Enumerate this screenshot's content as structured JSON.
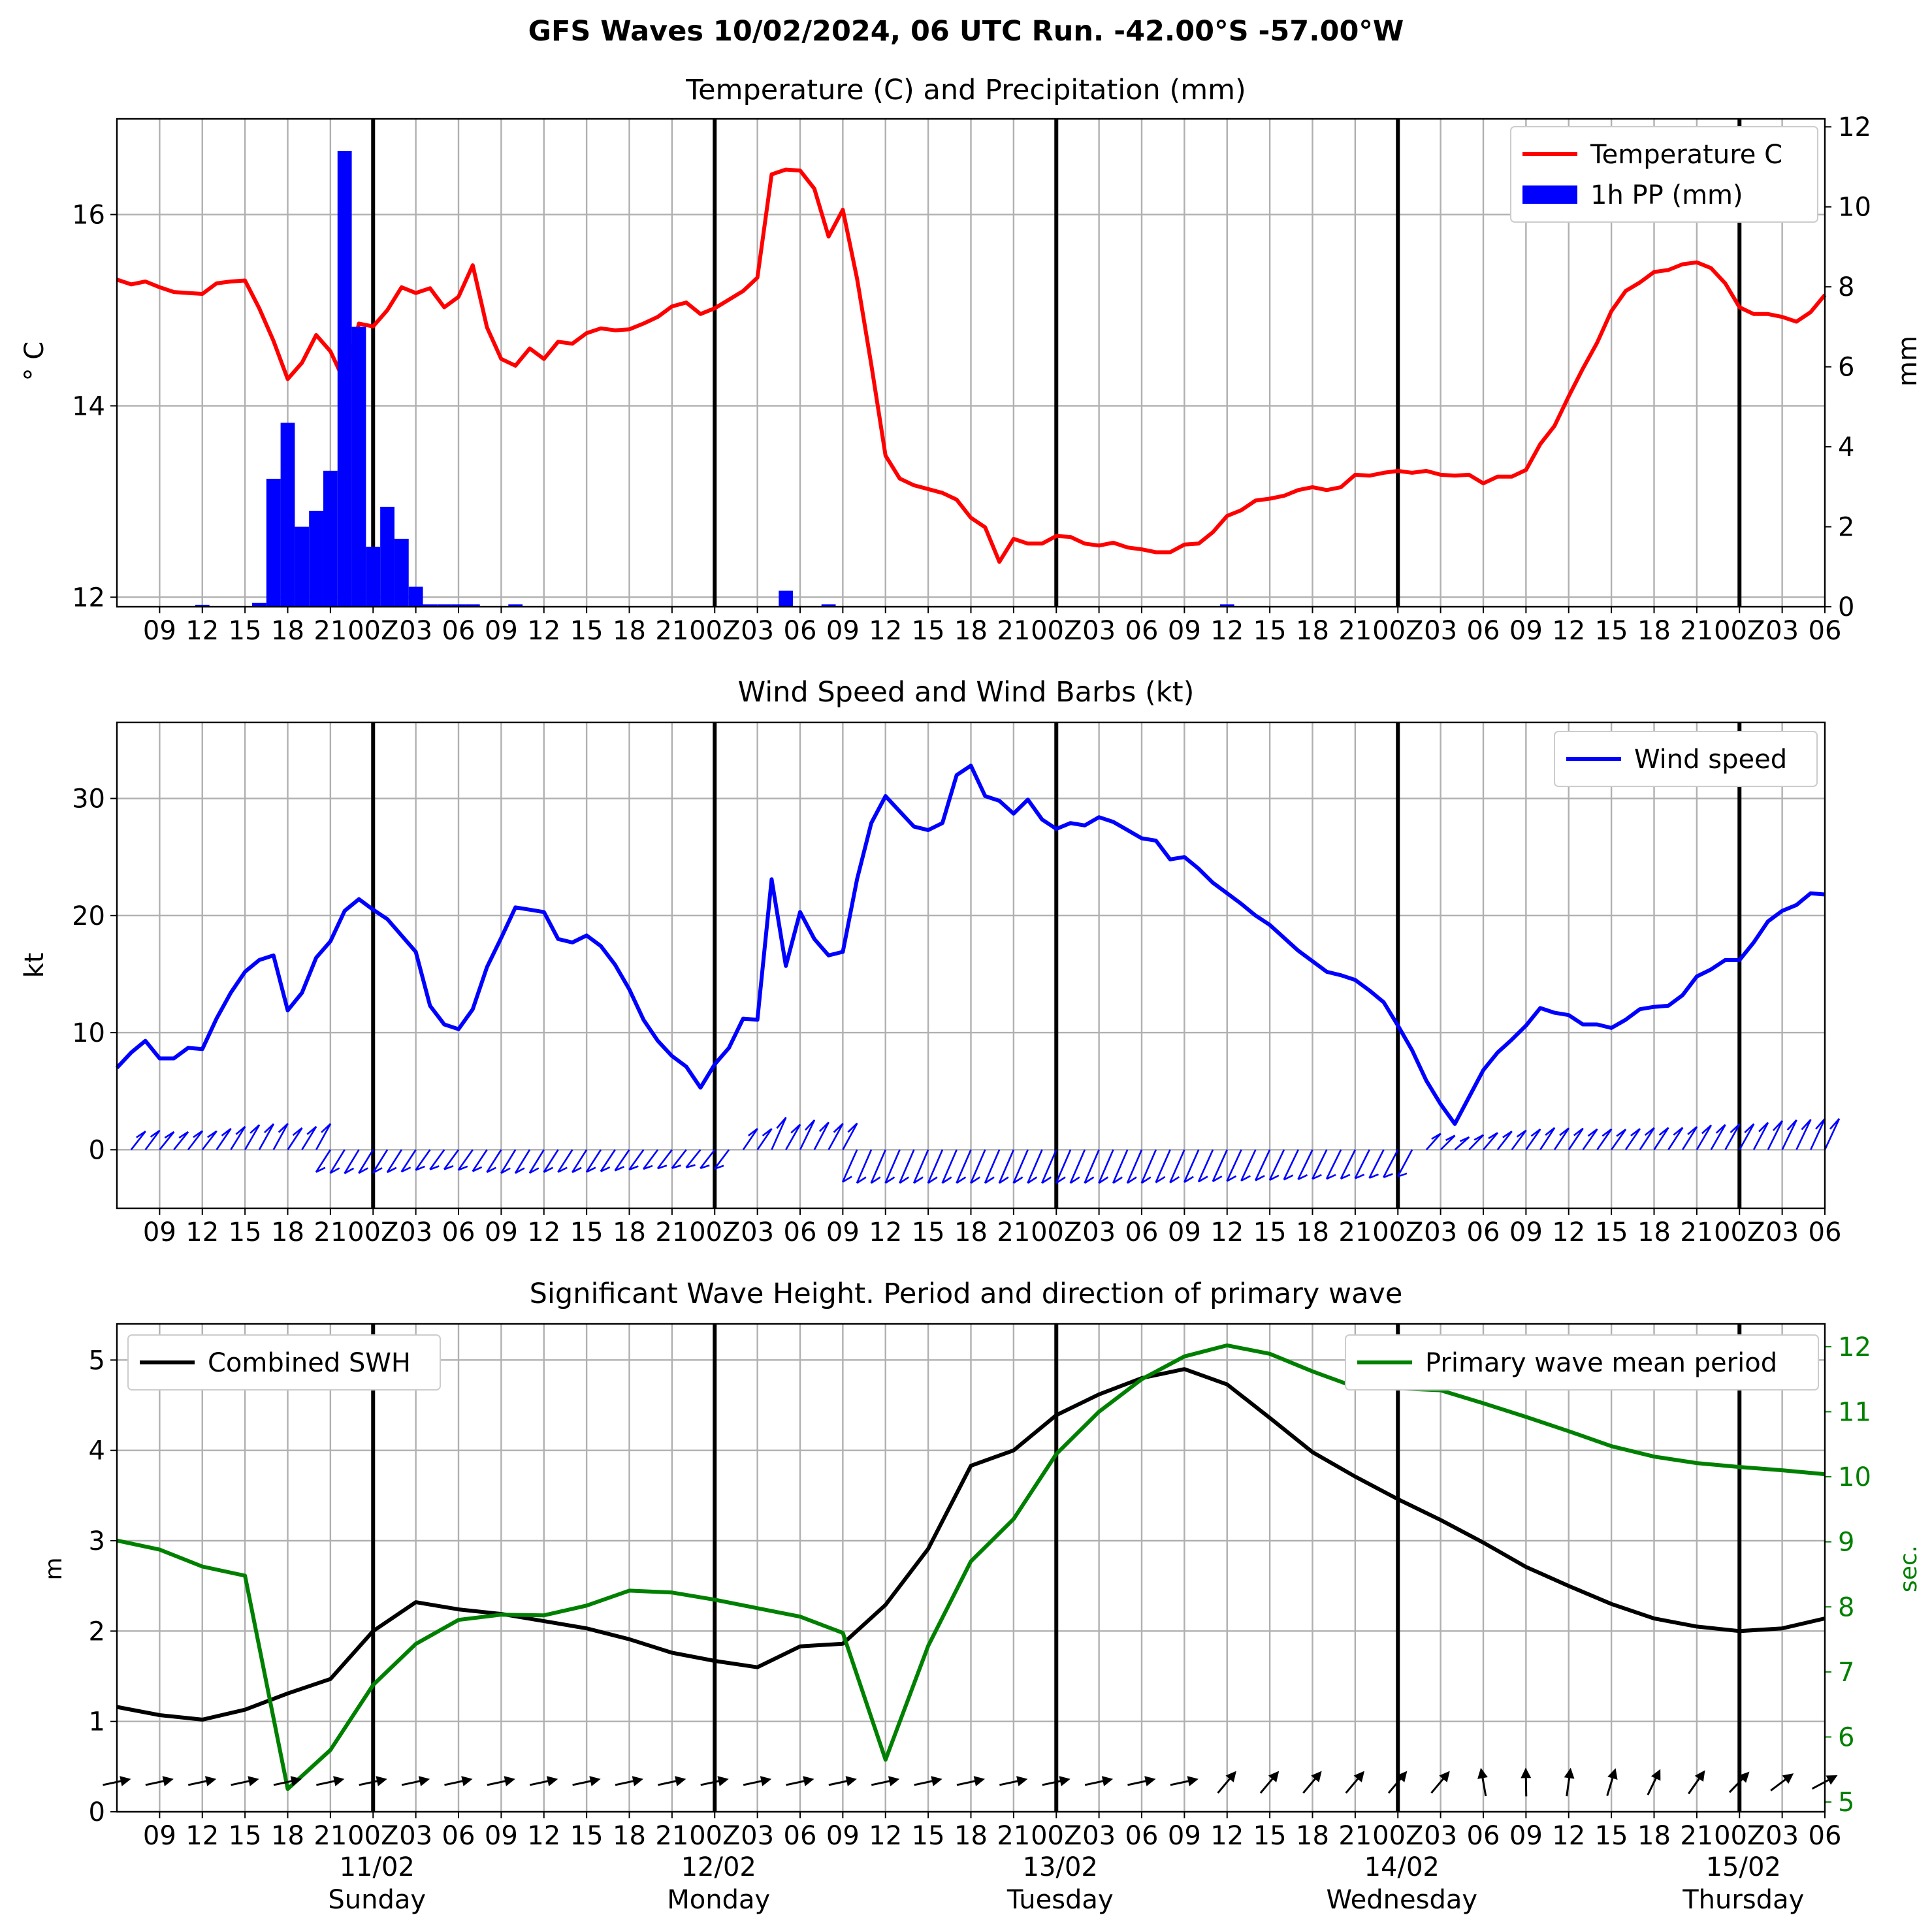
{
  "figure": {
    "title": "GFS Waves 10/02/2024, 06 UTC Run. -42.00°S -57.00°W",
    "x_tick_labels": [
      "09",
      "12",
      "15",
      "18",
      "21",
      "00Z",
      "03",
      "06",
      "09",
      "12",
      "15",
      "18",
      "21",
      "00Z",
      "03",
      "06",
      "09",
      "12",
      "15",
      "18",
      "21",
      "00Z",
      "03",
      "06",
      "09",
      "12",
      "15",
      "18",
      "21",
      "00Z",
      "03",
      "06",
      "09",
      "12",
      "15",
      "18",
      "21",
      "00Z",
      "03",
      "06"
    ],
    "day_labels": [
      {
        "date": "11/02",
        "day": "Sunday"
      },
      {
        "date": "12/02",
        "day": "Monday"
      },
      {
        "date": "13/02",
        "day": "Tuesday"
      },
      {
        "date": "14/02",
        "day": "Wednesday"
      },
      {
        "date": "15/02",
        "day": "Thursday"
      }
    ]
  },
  "chart_data": [
    {
      "type": "line",
      "title": "Temperature (C) and Precipitation (mm)",
      "x_unit": "hours since 10/02/2024 06 UTC",
      "xlim": [
        0,
        120
      ],
      "ylabel": "$^\\circ$C",
      "ylabel_display": "° C",
      "ylim": [
        11.9,
        17.0
      ],
      "yticks": [
        12,
        14,
        16
      ],
      "y2label": "mm",
      "y2lim": [
        0,
        12.2
      ],
      "y2ticks": [
        0,
        2,
        4,
        6,
        8,
        10,
        12
      ],
      "grid": true,
      "legend": "top-right",
      "series": [
        {
          "name": "Temperature C",
          "color": "#ff0000",
          "axis": "left",
          "x": [
            0,
            1,
            2,
            3,
            4,
            5,
            6,
            7,
            8,
            9,
            10,
            11,
            12,
            13,
            14,
            15,
            16,
            17,
            18,
            19,
            20,
            21,
            22,
            23,
            24,
            25,
            26,
            27,
            28,
            29,
            30,
            31,
            32,
            33,
            34,
            35,
            36,
            37,
            38,
            39,
            40,
            41,
            42,
            43,
            44,
            45,
            46,
            47,
            48,
            49,
            50,
            51,
            52,
            53,
            54,
            55,
            56,
            57,
            58,
            59,
            60,
            61,
            62,
            63,
            64,
            65,
            66,
            67,
            68,
            69,
            70,
            71,
            72,
            73,
            74,
            75,
            76,
            77,
            78,
            79,
            80,
            81,
            82,
            83,
            84,
            85,
            86,
            87,
            88,
            89,
            90,
            91,
            92,
            93,
            94,
            95,
            96,
            97,
            98,
            99,
            100,
            101,
            102,
            103,
            104,
            105,
            106,
            107,
            108,
            109,
            110,
            111,
            112,
            113,
            114,
            115,
            116,
            117,
            118,
            119,
            120
          ],
          "y": [
            15.32,
            15.27,
            15.3,
            15.24,
            15.19,
            15.18,
            15.17,
            15.28,
            15.3,
            15.31,
            15.02,
            14.68,
            14.28,
            14.45,
            14.74,
            14.57,
            14.25,
            14.86,
            14.83,
            15.0,
            15.24,
            15.18,
            15.23,
            15.03,
            15.14,
            15.47,
            14.82,
            14.49,
            14.42,
            14.6,
            14.49,
            14.67,
            14.65,
            14.76,
            14.81,
            14.79,
            14.8,
            14.86,
            14.93,
            15.04,
            15.08,
            14.96,
            15.02,
            15.11,
            15.2,
            15.34,
            16.42,
            16.47,
            16.46,
            16.27,
            15.77,
            16.05,
            15.33,
            14.43,
            13.48,
            13.24,
            13.17,
            13.13,
            13.09,
            13.02,
            12.83,
            12.73,
            12.37,
            12.61,
            12.56,
            12.56,
            12.64,
            12.63,
            12.56,
            12.54,
            12.57,
            12.52,
            12.5,
            12.47,
            12.47,
            12.55,
            12.56,
            12.68,
            12.85,
            12.91,
            13.01,
            13.03,
            13.06,
            13.12,
            13.15,
            13.12,
            13.15,
            13.28,
            13.27,
            13.3,
            13.32,
            13.3,
            13.32,
            13.28,
            13.27,
            13.28,
            13.19,
            13.26,
            13.26,
            13.33,
            13.6,
            13.79,
            14.1,
            14.39,
            14.66,
            14.99,
            15.2,
            15.29,
            15.4,
            15.42,
            15.48,
            15.5,
            15.44,
            15.28,
            15.03,
            14.96,
            14.96,
            14.93,
            14.88,
            14.98,
            15.16
          ]
        },
        {
          "name": "1h PP (mm)",
          "color": "#0000ff",
          "axis": "right",
          "type": "bar",
          "x": [
            6,
            10,
            11,
            12,
            13,
            14,
            15,
            16,
            17,
            18,
            19,
            20,
            21,
            22,
            23,
            24,
            25,
            28,
            47,
            50,
            78
          ],
          "y": [
            0.05,
            0.1,
            3.2,
            4.6,
            2.0,
            2.4,
            3.4,
            11.4,
            7.0,
            1.5,
            2.5,
            1.7,
            0.5,
            0.06,
            0.06,
            0.06,
            0.06,
            0.06,
            0.4,
            0.06,
            0.06
          ]
        }
      ]
    },
    {
      "type": "line",
      "title": "Wind Speed and Wind Barbs (kt)",
      "x_unit": "hours since 10/02/2024 06 UTC",
      "xlim": [
        0,
        120
      ],
      "ylabel": "kt",
      "ylim": [
        -5,
        36.5
      ],
      "yticks": [
        0,
        10,
        20,
        30
      ],
      "grid": true,
      "legend": "top-right",
      "series": [
        {
          "name": "Wind speed",
          "color": "#0000ff",
          "x": [
            0,
            1,
            2,
            3,
            4,
            5,
            6,
            7,
            8,
            9,
            10,
            11,
            12,
            13,
            14,
            15,
            16,
            17,
            18,
            19,
            20,
            21,
            22,
            23,
            24,
            25,
            26,
            27,
            28,
            29,
            30,
            31,
            32,
            33,
            34,
            35,
            36,
            37,
            38,
            39,
            40,
            41,
            42,
            43,
            44,
            45,
            46,
            47,
            48,
            49,
            50,
            51,
            52,
            53,
            54,
            55,
            56,
            57,
            58,
            59,
            60,
            61,
            62,
            63,
            64,
            65,
            66,
            67,
            68,
            69,
            70,
            71,
            72,
            73,
            74,
            75,
            76,
            77,
            78,
            79,
            80,
            81,
            82,
            83,
            84,
            85,
            86,
            87,
            88,
            89,
            90,
            91,
            92,
            93,
            94,
            95,
            96,
            97,
            98,
            99,
            100,
            101,
            102,
            103,
            104,
            105,
            106,
            107,
            108,
            109,
            110,
            111,
            112,
            113,
            114,
            115,
            116,
            117,
            118,
            119,
            120
          ],
          "y": [
            7.0,
            8.3,
            9.3,
            7.8,
            7.8,
            8.7,
            8.6,
            11.2,
            13.4,
            15.2,
            16.2,
            16.6,
            11.9,
            13.4,
            16.4,
            17.8,
            20.4,
            21.4,
            20.5,
            19.7,
            18.3,
            16.9,
            12.3,
            10.7,
            10.3,
            12.0,
            15.6,
            18.1,
            20.7,
            20.5,
            20.3,
            18.0,
            17.7,
            18.3,
            17.4,
            15.8,
            13.7,
            11.1,
            9.3,
            8.0,
            7.1,
            5.3,
            7.3,
            8.7,
            11.2,
            11.1,
            23.1,
            15.7,
            20.3,
            18.0,
            16.6,
            16.9,
            23.1,
            27.9,
            30.2,
            28.9,
            27.6,
            27.3,
            27.9,
            32.0,
            32.8,
            30.2,
            29.8,
            28.7,
            29.9,
            28.2,
            27.4,
            27.9,
            27.7,
            28.4,
            28.0,
            27.3,
            26.6,
            26.4,
            24.8,
            25.0,
            24.0,
            22.8,
            21.9,
            21.0,
            20.0,
            19.2,
            18.1,
            17.0,
            16.1,
            15.2,
            14.9,
            14.5,
            13.6,
            12.6,
            10.6,
            8.5,
            5.9,
            3.9,
            2.2,
            4.5,
            6.8,
            8.3,
            9.4,
            10.6,
            12.1,
            11.7,
            11.5,
            10.7,
            10.7,
            10.4,
            11.1,
            12.0,
            12.2,
            12.3,
            13.2,
            14.8,
            15.4,
            16.2,
            16.2,
            17.7,
            19.5,
            20.4,
            20.9,
            21.9,
            21.8
          ]
        }
      ]
    },
    {
      "type": "line",
      "title": "Significant Wave Height. Period and direction of primary wave",
      "x_unit": "hours since 10/02/2024 06 UTC",
      "xlim": [
        0,
        120
      ],
      "ylabel": "m",
      "ylim": [
        0,
        5.4
      ],
      "yticks": [
        0,
        1,
        2,
        3,
        4,
        5
      ],
      "y2label": "sec.",
      "y2lim": [
        4.85,
        12.35
      ],
      "y2ticks": [
        5,
        6,
        7,
        8,
        9,
        10,
        11,
        12
      ],
      "grid": true,
      "series": [
        {
          "name": "Combined SWH",
          "color": "#000000",
          "axis": "left",
          "legend": "top-left",
          "x": [
            0,
            3,
            6,
            9,
            12,
            15,
            18,
            21,
            24,
            27,
            30,
            33,
            36,
            39,
            42,
            45,
            48,
            51,
            54,
            57,
            60,
            63,
            66,
            69,
            72,
            75,
            78,
            81,
            84,
            87,
            90,
            93,
            96,
            99,
            102,
            105,
            108,
            111,
            114,
            117,
            120
          ],
          "y": [
            1.16,
            1.07,
            1.02,
            1.13,
            1.31,
            1.47,
            2.0,
            2.32,
            2.24,
            2.19,
            2.11,
            2.03,
            1.91,
            1.76,
            1.67,
            1.6,
            1.83,
            1.86,
            2.29,
            2.91,
            3.83,
            4.0,
            4.39,
            4.62,
            4.8,
            4.9,
            4.73,
            4.36,
            3.98,
            3.71,
            3.46,
            3.23,
            2.98,
            2.71,
            2.5,
            2.3,
            2.14,
            2.05,
            2.0,
            2.03,
            2.14
          ]
        },
        {
          "name": "Primary wave mean period",
          "color": "#008000",
          "axis": "right",
          "legend": "top-right",
          "x": [
            0,
            3,
            6,
            9,
            12,
            15,
            18,
            21,
            24,
            27,
            30,
            33,
            36,
            39,
            42,
            45,
            48,
            51,
            54,
            57,
            60,
            63,
            66,
            69,
            72,
            75,
            78,
            81,
            84,
            87,
            90,
            93,
            96,
            99,
            102,
            105,
            108,
            111,
            114,
            117,
            120
          ],
          "y": [
            9.02,
            8.88,
            8.62,
            8.48,
            5.2,
            5.8,
            6.8,
            7.43,
            7.8,
            7.88,
            7.87,
            8.02,
            8.25,
            8.22,
            8.11,
            7.98,
            7.85,
            7.6,
            5.65,
            7.4,
            8.7,
            9.35,
            10.35,
            11.0,
            11.5,
            11.85,
            12.02,
            11.89,
            11.62,
            11.38,
            11.36,
            11.33,
            11.13,
            10.92,
            10.7,
            10.47,
            10.31,
            10.21,
            10.15,
            10.1,
            10.04
          ]
        }
      ]
    }
  ]
}
